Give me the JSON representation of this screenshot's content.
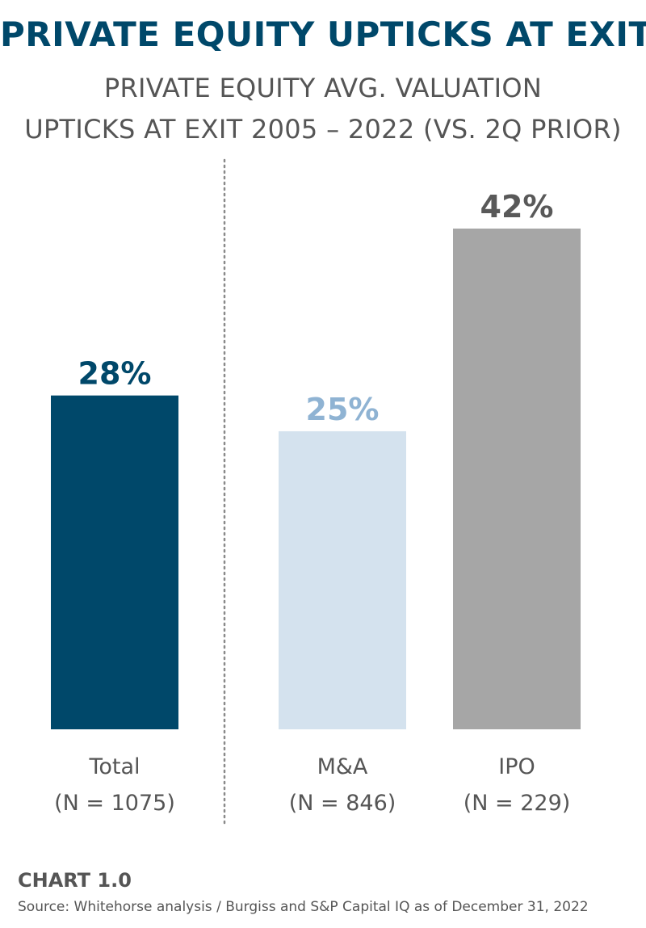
{
  "title": "PRIVATE EQUITY UPTICKS AT EXIT",
  "subtitle_line1": "PRIVATE EQUITY AVG. VALUATION",
  "subtitle_line2": "UPTICKS AT EXIT 2005 – 2022 (VS. 2Q PRIOR)",
  "chart_label": "CHART 1.0",
  "source": "Source: Whitehorse analysis / Burgiss and S&P Capital IQ as of December 31, 2022",
  "chart_data": {
    "type": "bar",
    "categories": [
      "Total",
      "M&A",
      "IPO"
    ],
    "category_sublabels": [
      "(N = 1075)",
      "(N = 846)",
      "(N = 229)"
    ],
    "values": [
      28,
      25,
      42
    ],
    "data_labels": [
      "28%",
      "25%",
      "42%"
    ],
    "unit": "%",
    "bar_colors": [
      "#00486a",
      "#d4e2ee",
      "#a6a6a6"
    ],
    "label_colors": [
      "#00486a",
      "#8fb3d3",
      "#595959"
    ],
    "ylim": [
      0,
      42
    ],
    "grid": false,
    "divider_after_category": "Total"
  }
}
